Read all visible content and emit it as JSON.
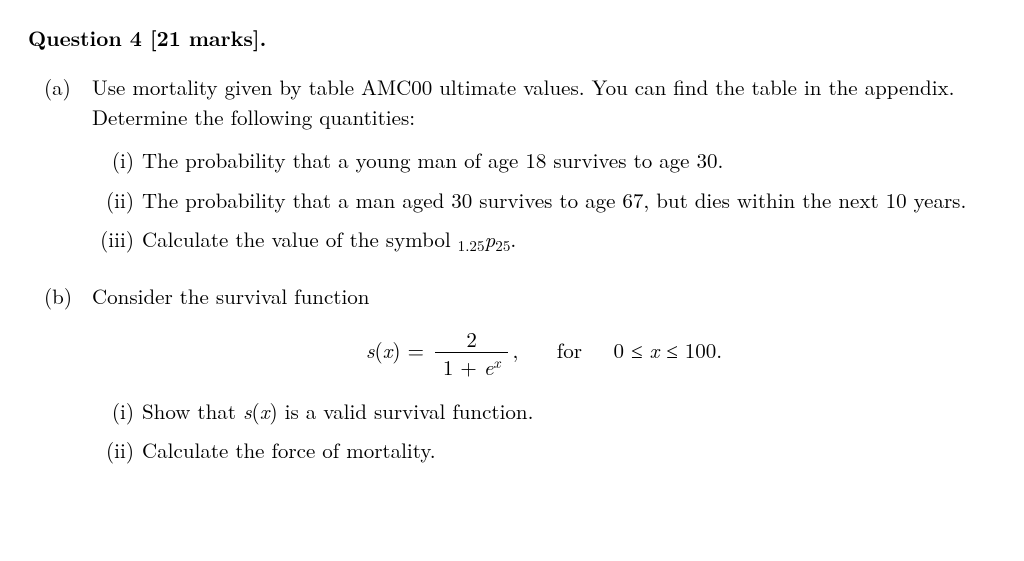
{
  "heading": {
    "label": "Question 4",
    "marks": "[21 marks]",
    "period": "."
  },
  "partA": {
    "label": "(a)",
    "text1": "Use mortality given by table AMC00 ultimate values. You can find the table in the appendix. Determine the following quantities:",
    "sub": {
      "i": {
        "label": "(i)",
        "text": "The probability that a young man of age 18 survives to age 30."
      },
      "ii": {
        "label": "(ii)",
        "text": "The probability that a man aged 30 survives to age 67, but dies within the next 10 years."
      },
      "iii": {
        "label": "(iii)",
        "prefix": "Calculate the value of the symbol ",
        "sym_presub": "1.25",
        "sym_base": "p",
        "sym_sub": "25",
        "period": "."
      }
    }
  },
  "partB": {
    "label": "(b)",
    "intro": "Consider the survival function",
    "eq": {
      "lhs_fn": "s",
      "lhs_arg": "x",
      "num": "2",
      "den_one": "1 + ",
      "den_e": "e",
      "den_exp": "x",
      "comma": ",",
      "for": "for",
      "range_lo": "0 ≤ ",
      "range_var": "x",
      "range_hi": " ≤ 100."
    },
    "sub": {
      "i": {
        "label": "(i)",
        "p1": "Show that ",
        "fn": "s",
        "arg": "x",
        "p2": " is a valid survival function."
      },
      "ii": {
        "label": "(ii)",
        "text": "Calculate the force of mortality."
      }
    }
  }
}
